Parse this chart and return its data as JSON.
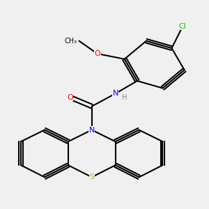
{
  "background_color": "#f0f0f0",
  "figsize": [
    3.0,
    3.0
  ],
  "dpi": 100,
  "bond_color": "#000000",
  "bond_width": 1.5,
  "atom_colors": {
    "C": "#000000",
    "N": "#0000ff",
    "O": "#ff0000",
    "S": "#ccaa00",
    "Cl": "#00cc00",
    "H": "#888888"
  },
  "font_size": 8
}
